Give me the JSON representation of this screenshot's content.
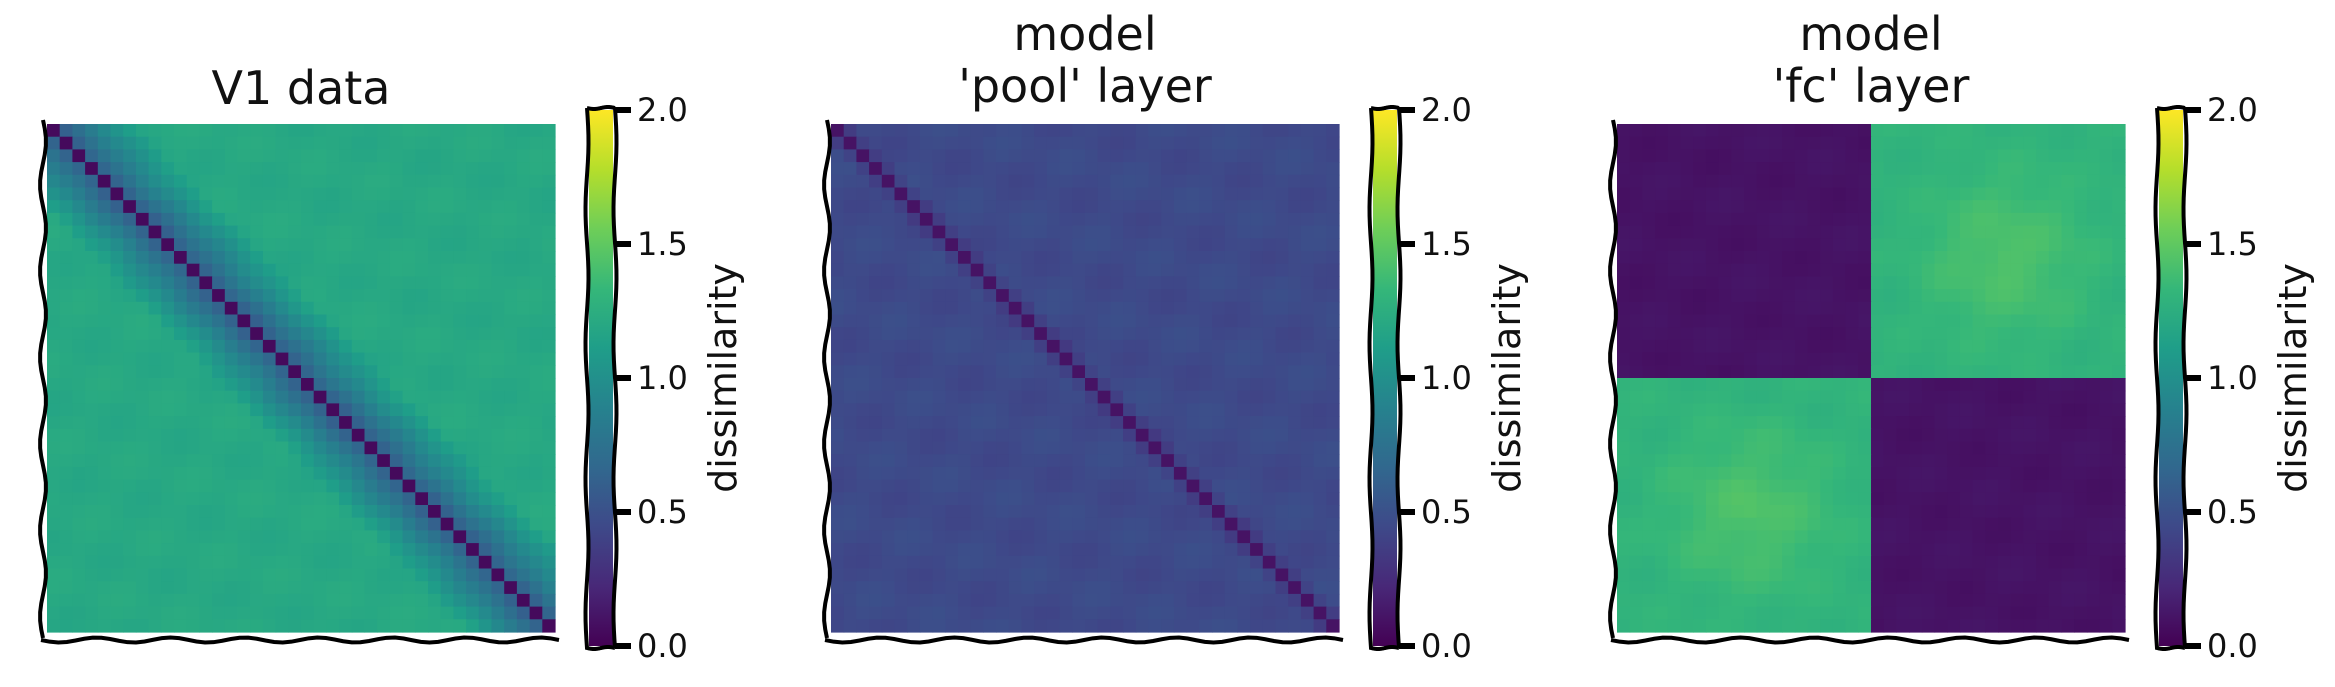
{
  "chart_data": [
    {
      "type": "heatmap",
      "title": "V1 data",
      "xlabel": "",
      "ylabel": "",
      "colorbar": {
        "label": "dissimilarity",
        "ticks": [
          "0.0",
          "0.5",
          "1.0",
          "1.5",
          "2.0"
        ],
        "range": [
          0,
          2
        ],
        "colormap": "viridis"
      },
      "matrix_description": {
        "diagonal_value": 0.05,
        "near_diagonal_value": 0.45,
        "off_diagonal_value": 1.2,
        "band_width_fraction": 0.18
      }
    },
    {
      "type": "heatmap",
      "title": "model\n'pool' layer",
      "xlabel": "",
      "ylabel": "",
      "colorbar": {
        "label": "dissimilarity",
        "ticks": [
          "0.0",
          "0.5",
          "1.0",
          "1.5",
          "2.0"
        ],
        "range": [
          0,
          2
        ],
        "colormap": "viridis"
      },
      "matrix_description": {
        "diagonal_value": 0.1,
        "near_diagonal_value": 0.3,
        "off_diagonal_value": 0.45,
        "band_width_fraction": 0.05
      }
    },
    {
      "type": "heatmap",
      "title": "model\n'fc' layer",
      "xlabel": "",
      "ylabel": "",
      "colorbar": {
        "label": "dissimilarity",
        "ticks": [
          "0.0",
          "0.5",
          "1.0",
          "1.5",
          "2.0"
        ],
        "range": [
          0,
          2
        ],
        "colormap": "viridis"
      },
      "matrix_description": {
        "block_split_fraction": 0.5,
        "within_block_value": 0.1,
        "between_block_value": 1.3,
        "between_block_center_value": 1.45
      }
    }
  ],
  "colors": {
    "viridis": [
      "#440154",
      "#482878",
      "#3e4989",
      "#31688e",
      "#26828e",
      "#1f9e89",
      "#35b779",
      "#6ece58",
      "#b5de2b",
      "#fde725"
    ],
    "frame": "#000000"
  }
}
